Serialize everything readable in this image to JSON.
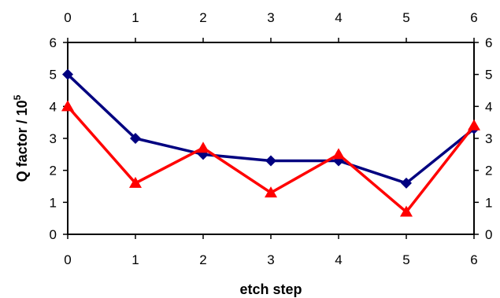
{
  "chart_data": {
    "type": "line",
    "xlabel": "etch step",
    "ylabel": "Q factor / 10",
    "ylabel_sup": "5",
    "xlim": [
      0,
      6
    ],
    "ylim": [
      0,
      6
    ],
    "x": [
      0,
      1,
      2,
      3,
      4,
      5,
      6
    ],
    "x_tick_labels": [
      "0",
      "1",
      "2",
      "3",
      "4",
      "5",
      "6"
    ],
    "y_tick_labels": [
      "0",
      "1",
      "2",
      "3",
      "4",
      "5",
      "6"
    ],
    "grid": false,
    "legend": "none",
    "series": [
      {
        "values": [
          5.0,
          3.0,
          2.5,
          2.3,
          2.3,
          1.6,
          3.3
        ],
        "color": "#000080",
        "marker": "diamond"
      },
      {
        "values": [
          4.0,
          1.6,
          2.7,
          1.3,
          2.5,
          0.7,
          3.4
        ],
        "color": "#ff0000",
        "marker": "triangle"
      }
    ]
  }
}
